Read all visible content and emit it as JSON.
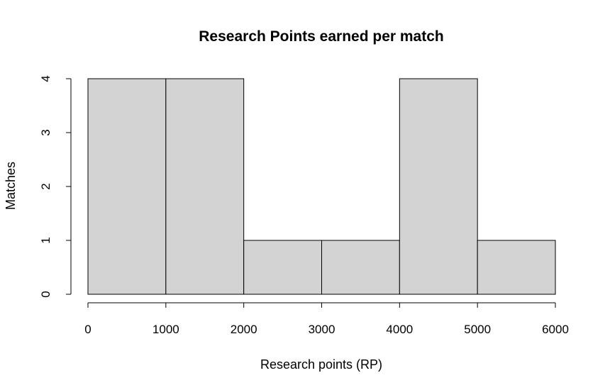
{
  "chart_data": {
    "type": "bar",
    "title": "Research Points earned per match",
    "xlabel": "Research points (RP)",
    "ylabel": "Matches",
    "bins": [
      {
        "from": 0,
        "to": 1000,
        "count": 4
      },
      {
        "from": 1000,
        "to": 2000,
        "count": 4
      },
      {
        "from": 2000,
        "to": 3000,
        "count": 1
      },
      {
        "from": 3000,
        "to": 4000,
        "count": 1
      },
      {
        "from": 4000,
        "to": 5000,
        "count": 4
      },
      {
        "from": 5000,
        "to": 6000,
        "count": 1
      }
    ],
    "xlim": [
      0,
      6000
    ],
    "ylim": [
      0,
      4
    ],
    "xticks": [
      "0",
      "1000",
      "2000",
      "3000",
      "4000",
      "5000",
      "6000"
    ],
    "yticks": [
      "0",
      "1",
      "2",
      "3",
      "4"
    ],
    "grid": false,
    "bar_color": "#d3d3d3"
  }
}
